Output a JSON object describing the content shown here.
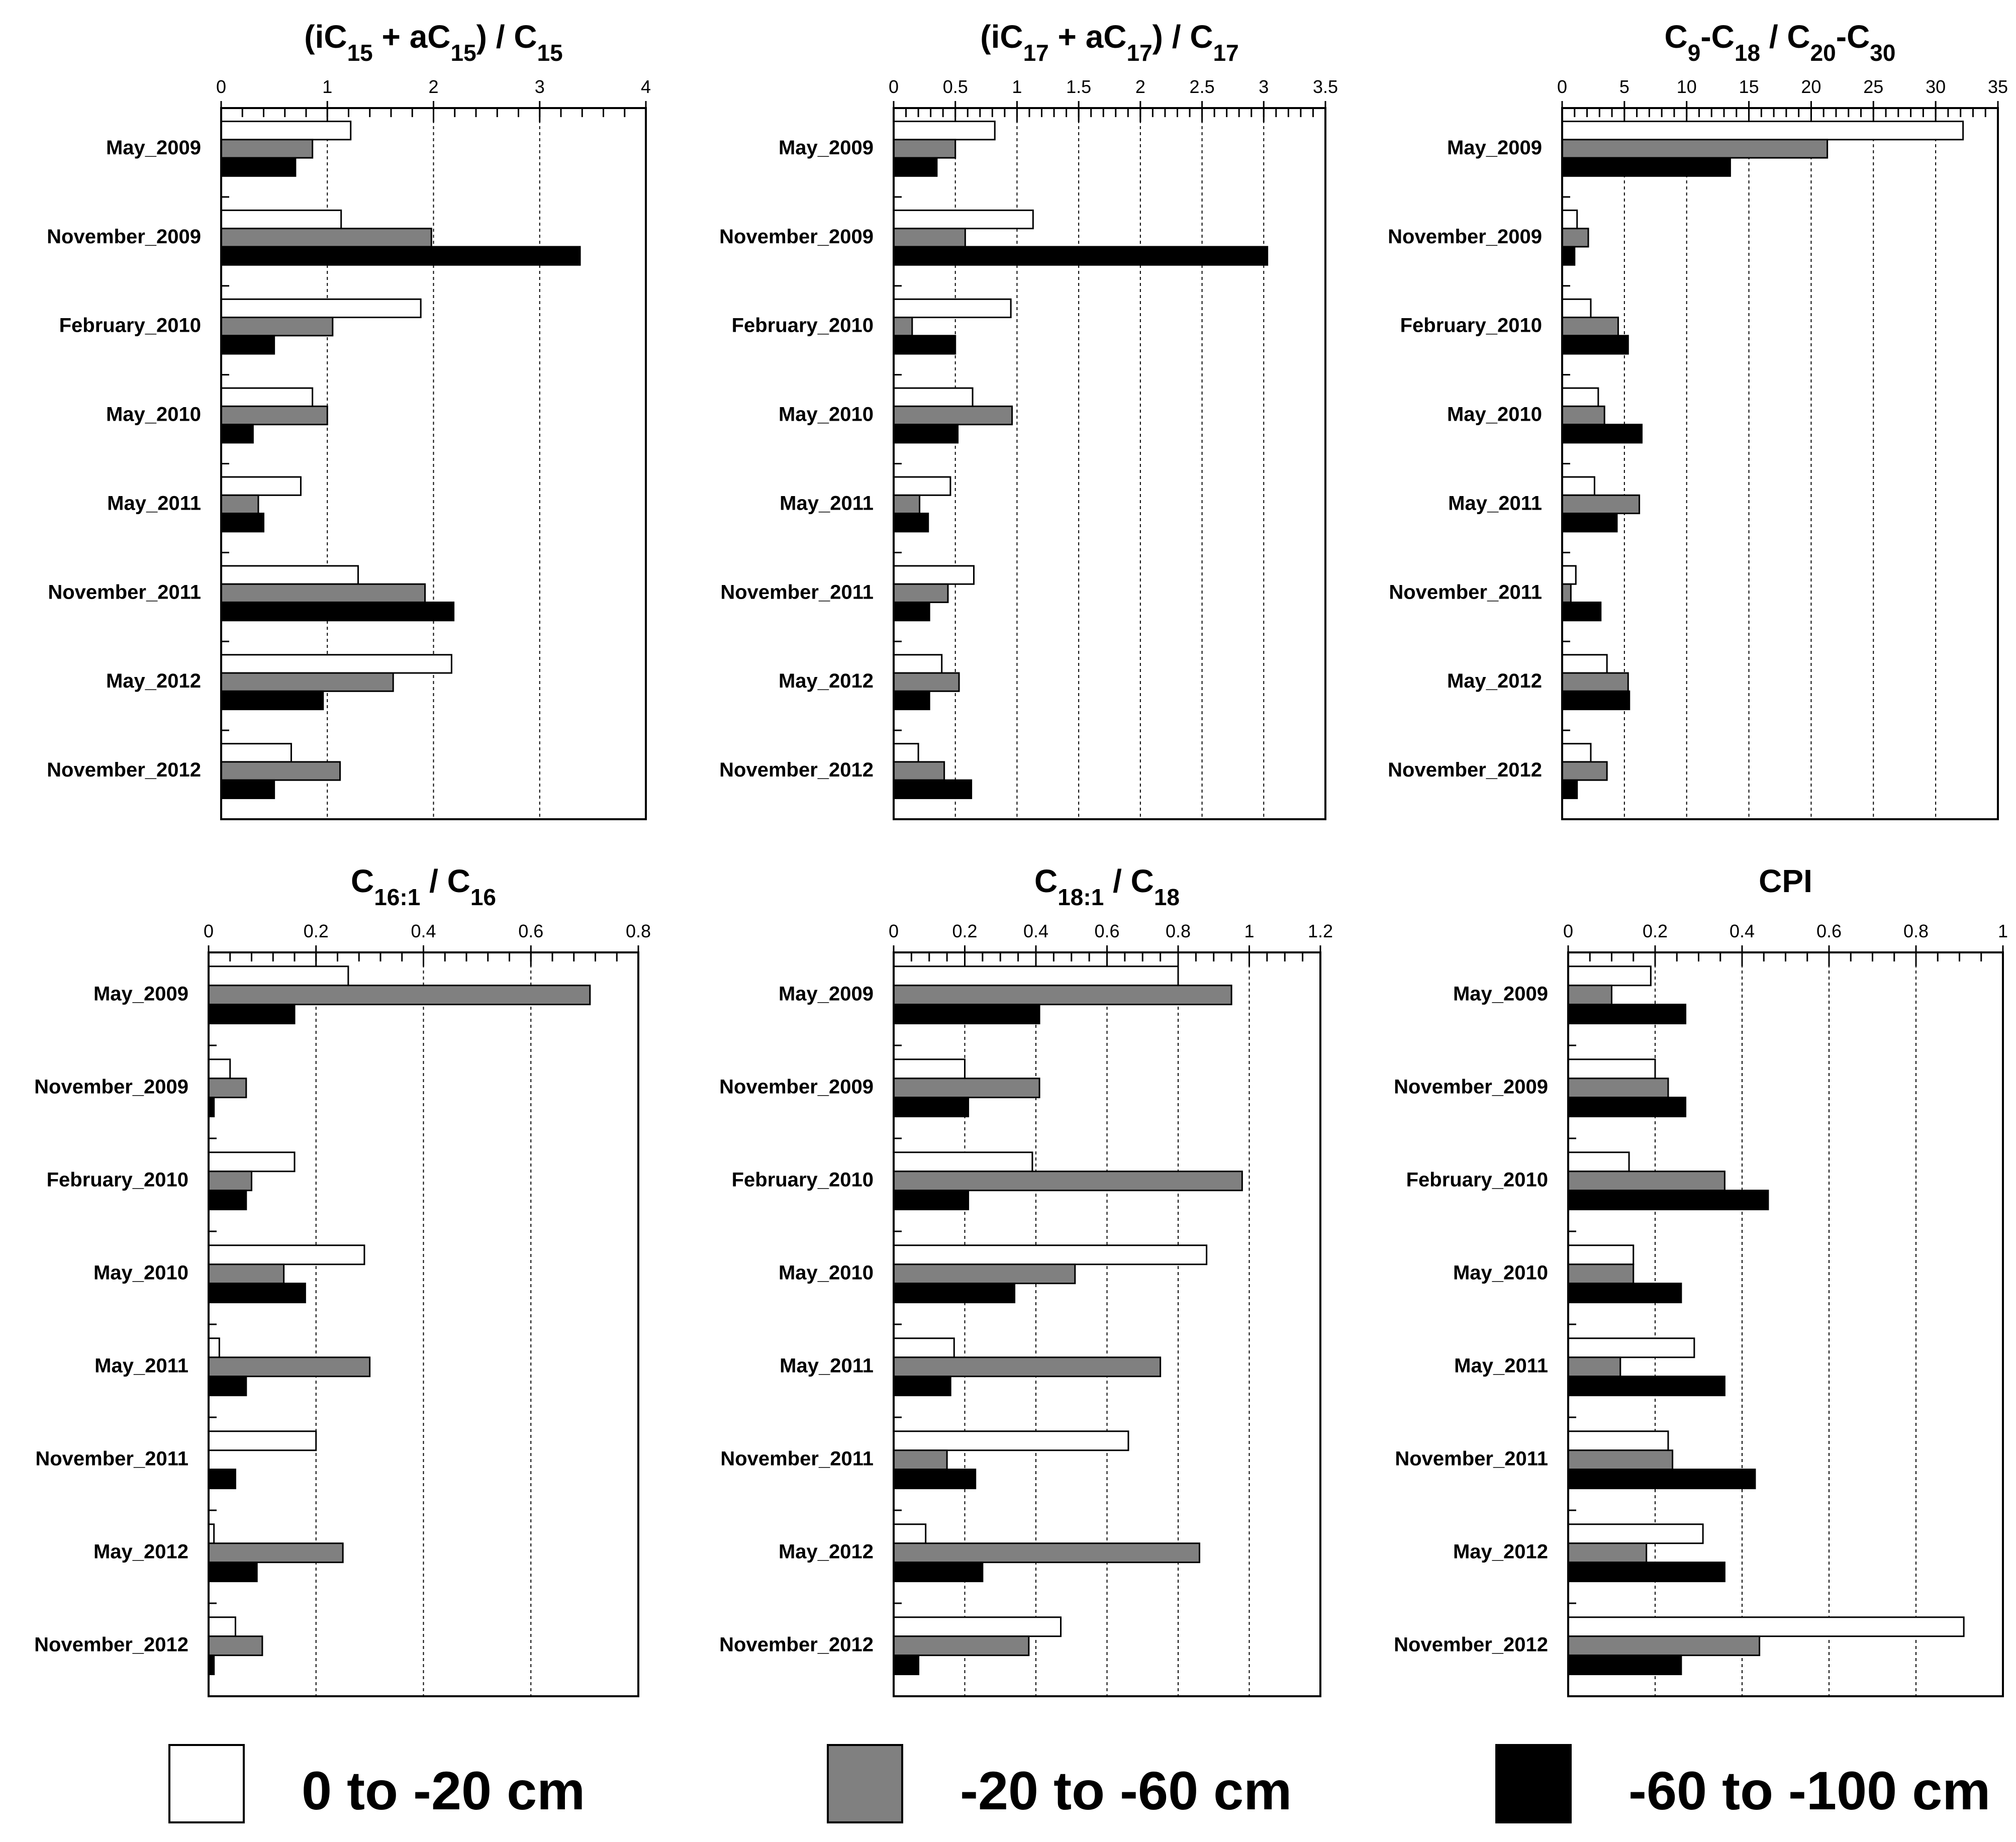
{
  "series_colors": {
    "0 to -20 cm": "#ffffff",
    "-20 to -60 cm": "#808080",
    "-60 to -100 cm": "#000000"
  },
  "legend": [
    {
      "label": "0 to -20 cm",
      "color": "#ffffff"
    },
    {
      "label": "-20 to -60 cm",
      "color": "#808080"
    },
    {
      "label": "-60 to -100 cm",
      "color": "#000000"
    }
  ],
  "chart_data": [
    {
      "type": "bar",
      "orientation": "horizontal",
      "title_parts": [
        {
          "t": "(iC"
        },
        {
          "t": "15",
          "sub": true
        },
        {
          "t": " + aC"
        },
        {
          "t": "15",
          "sub": true
        },
        {
          "t": ") / C"
        },
        {
          "t": "15",
          "sub": true
        }
      ],
      "title": "(iC15 + aC15) / C15",
      "categories": [
        "May_2009",
        "November_2009",
        "February_2010",
        "May_2010",
        "May_2011",
        "November_2011",
        "May_2012",
        "November_2012"
      ],
      "xlim": [
        0,
        4
      ],
      "ticks": [
        "0",
        "1",
        "2",
        "3",
        "4"
      ],
      "tick_values": [
        0,
        1,
        2,
        3,
        4
      ],
      "minor_step": 0.2,
      "series": [
        {
          "name": "0 to -20 cm",
          "values": [
            1.22,
            1.13,
            1.88,
            0.86,
            0.75,
            1.29,
            2.17,
            0.66
          ]
        },
        {
          "name": "-20 to -60 cm",
          "values": [
            0.86,
            1.98,
            1.05,
            1.0,
            0.35,
            1.92,
            1.62,
            1.12
          ]
        },
        {
          "name": "-60 to -100 cm",
          "values": [
            0.7,
            3.38,
            0.5,
            0.3,
            0.4,
            2.19,
            0.96,
            0.5
          ]
        }
      ]
    },
    {
      "type": "bar",
      "orientation": "horizontal",
      "title_parts": [
        {
          "t": "(iC"
        },
        {
          "t": "17",
          "sub": true
        },
        {
          "t": " + aC"
        },
        {
          "t": "17",
          "sub": true
        },
        {
          "t": ") / C"
        },
        {
          "t": "17",
          "sub": true
        }
      ],
      "title": "(iC17 + aC17) / C17",
      "categories": [
        "May_2009",
        "November_2009",
        "February_2010",
        "May_2010",
        "May_2011",
        "November_2011",
        "May_2012",
        "November_2012"
      ],
      "xlim": [
        0,
        3.5
      ],
      "ticks": [
        "0",
        "0.5",
        "1",
        "1.5",
        "2",
        "2.5",
        "3",
        "3.5"
      ],
      "tick_values": [
        0,
        0.5,
        1,
        1.5,
        2,
        2.5,
        3,
        3.5
      ],
      "minor_step": 0.1,
      "series": [
        {
          "name": "0 to -20 cm",
          "values": [
            0.82,
            1.13,
            0.95,
            0.64,
            0.46,
            0.65,
            0.39,
            0.2
          ]
        },
        {
          "name": "-20 to -60 cm",
          "values": [
            0.5,
            0.58,
            0.15,
            0.96,
            0.21,
            0.44,
            0.53,
            0.41
          ]
        },
        {
          "name": "-60 to -100 cm",
          "values": [
            0.35,
            3.03,
            0.5,
            0.52,
            0.28,
            0.29,
            0.29,
            0.63
          ]
        }
      ]
    },
    {
      "type": "bar",
      "orientation": "horizontal",
      "title_parts": [
        {
          "t": "C"
        },
        {
          "t": "9",
          "sub": true
        },
        {
          "t": "-C"
        },
        {
          "t": "18",
          "sub": true
        },
        {
          "t": " / C"
        },
        {
          "t": "20",
          "sub": true
        },
        {
          "t": "-C"
        },
        {
          "t": "30",
          "sub": true
        }
      ],
      "title": "C9-C18 / C20-C30",
      "categories": [
        "May_2009",
        "November_2009",
        "February_2010",
        "May_2010",
        "May_2011",
        "November_2011",
        "May_2012",
        "November_2012"
      ],
      "xlim": [
        0,
        35
      ],
      "ticks": [
        "0",
        "5",
        "10",
        "15",
        "20",
        "25",
        "30",
        "35"
      ],
      "tick_values": [
        0,
        5,
        10,
        15,
        20,
        25,
        30,
        35
      ],
      "minor_step": 1,
      "series": [
        {
          "name": "0 to -20 cm",
          "values": [
            32.2,
            1.2,
            2.3,
            2.9,
            2.6,
            1.1,
            3.6,
            2.3
          ]
        },
        {
          "name": "-20 to -60 cm",
          "values": [
            21.3,
            2.1,
            4.5,
            3.4,
            6.2,
            0.7,
            5.3,
            3.6
          ]
        },
        {
          "name": "-60 to -100 cm",
          "values": [
            13.5,
            1.0,
            5.3,
            6.4,
            4.4,
            3.1,
            5.4,
            1.2
          ]
        }
      ]
    },
    {
      "type": "bar",
      "orientation": "horizontal",
      "title_parts": [
        {
          "t": "C"
        },
        {
          "t": "16:1",
          "sub": true
        },
        {
          "t": " / C"
        },
        {
          "t": "16",
          "sub": true
        }
      ],
      "title": "C16:1 / C16",
      "categories": [
        "May_2009",
        "November_2009",
        "February_2010",
        "May_2010",
        "May_2011",
        "November_2011",
        "May_2012",
        "November_2012"
      ],
      "xlim": [
        0,
        0.8
      ],
      "ticks": [
        "0",
        "0.2",
        "0.4",
        "0.6",
        "0.8"
      ],
      "tick_values": [
        0,
        0.2,
        0.4,
        0.6,
        0.8
      ],
      "minor_step": 0.04,
      "series": [
        {
          "name": "0 to -20 cm",
          "values": [
            0.26,
            0.04,
            0.16,
            0.29,
            0.02,
            0.2,
            0.01,
            0.05
          ]
        },
        {
          "name": "-20 to -60 cm",
          "values": [
            0.71,
            0.07,
            0.08,
            0.14,
            0.3,
            0.0,
            0.25,
            0.1
          ]
        },
        {
          "name": "-60 to -100 cm",
          "values": [
            0.16,
            0.01,
            0.07,
            0.18,
            0.07,
            0.05,
            0.09,
            0.01
          ]
        }
      ]
    },
    {
      "type": "bar",
      "orientation": "horizontal",
      "title_parts": [
        {
          "t": "C"
        },
        {
          "t": "18:1",
          "sub": true
        },
        {
          "t": " / C"
        },
        {
          "t": "18",
          "sub": true
        }
      ],
      "title": "C18:1 / C18",
      "categories": [
        "May_2009",
        "November_2009",
        "February_2010",
        "May_2010",
        "May_2011",
        "November_2011",
        "May_2012",
        "November_2012"
      ],
      "xlim": [
        0,
        1.2
      ],
      "ticks": [
        "0",
        "0.2",
        "0.4",
        "0.6",
        "0.8",
        "1",
        "1.2"
      ],
      "tick_values": [
        0,
        0.2,
        0.4,
        0.6,
        0.8,
        1,
        1.2
      ],
      "minor_step": 0.05,
      "series": [
        {
          "name": "0 to -20 cm",
          "values": [
            0.8,
            0.2,
            0.39,
            0.88,
            0.17,
            0.66,
            0.09,
            0.47
          ]
        },
        {
          "name": "-20 to -60 cm",
          "values": [
            0.95,
            0.41,
            0.98,
            0.51,
            0.75,
            0.15,
            0.86,
            0.38
          ]
        },
        {
          "name": "-60 to -100 cm",
          "values": [
            0.41,
            0.21,
            0.21,
            0.34,
            0.16,
            0.23,
            0.25,
            0.07
          ]
        }
      ]
    },
    {
      "type": "bar",
      "orientation": "horizontal",
      "title_parts": [
        {
          "t": "CPI"
        }
      ],
      "title": "CPI",
      "categories": [
        "May_2009",
        "November_2009",
        "February_2010",
        "May_2010",
        "May_2011",
        "November_2011",
        "May_2012",
        "November_2012"
      ],
      "xlim": [
        0,
        1
      ],
      "ticks": [
        "0",
        "0.2",
        "0.4",
        "0.6",
        "0.8",
        "1"
      ],
      "tick_values": [
        0,
        0.2,
        0.4,
        0.6,
        0.8,
        1
      ],
      "minor_step": 0.05,
      "series": [
        {
          "name": "0 to -20 cm",
          "values": [
            0.19,
            0.2,
            0.14,
            0.15,
            0.29,
            0.23,
            0.31,
            0.91
          ]
        },
        {
          "name": "-20 to -60 cm",
          "values": [
            0.1,
            0.23,
            0.36,
            0.15,
            0.12,
            0.24,
            0.18,
            0.44
          ]
        },
        {
          "name": "-60 to -100 cm",
          "values": [
            0.27,
            0.27,
            0.46,
            0.26,
            0.36,
            0.43,
            0.36,
            0.26
          ]
        }
      ]
    }
  ]
}
